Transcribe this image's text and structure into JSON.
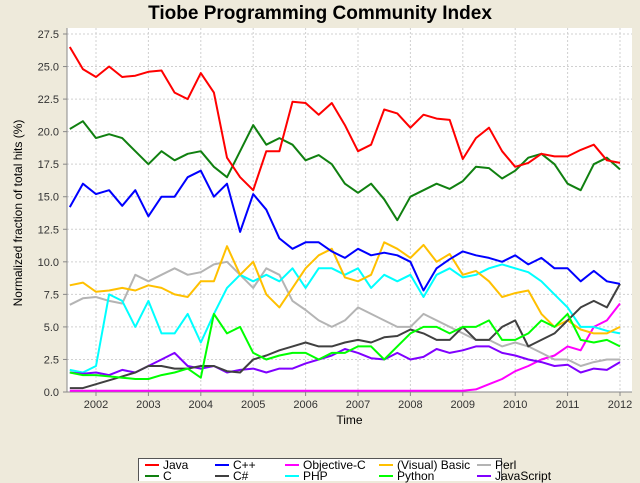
{
  "chart_data": {
    "type": "line",
    "title": "Tiobe Programming Community Index",
    "xlabel": "Time",
    "ylabel": "Normalized fraction of total hits (%)",
    "xlim": [
      2001.45,
      2012.1
    ],
    "ylim": [
      0,
      27.5
    ],
    "x_ticks": [
      "2002",
      "2003",
      "2004",
      "2005",
      "2006",
      "2007",
      "2008",
      "2009",
      "2010",
      "2011",
      "2012"
    ],
    "y_ticks": [
      "0.0",
      "2.5",
      "5.0",
      "7.5",
      "10.0",
      "12.5",
      "15.0",
      "17.5",
      "20.0",
      "22.5",
      "25.0",
      "27.5"
    ],
    "grid": true,
    "legend_position": "bottom",
    "x_start": 2001.5,
    "x_step": 0.25,
    "series": [
      {
        "name": "Java",
        "color": "#FF0000",
        "values": [
          26.5,
          24.8,
          24.2,
          25.0,
          24.2,
          24.3,
          24.6,
          24.7,
          23.0,
          22.5,
          24.5,
          23.0,
          18.0,
          16.5,
          15.5,
          18.5,
          18.5,
          22.3,
          22.2,
          21.3,
          22.2,
          20.5,
          18.5,
          19.0,
          21.7,
          21.4,
          20.3,
          21.3,
          21.0,
          20.9,
          17.9,
          19.5,
          20.3,
          18.5,
          17.3,
          17.6,
          18.3,
          18.1,
          18.1,
          18.6,
          19.0,
          17.8,
          17.6
        ]
      },
      {
        "name": "C++",
        "color": "#0000FF",
        "values": [
          14.2,
          16.0,
          15.2,
          15.5,
          14.3,
          15.5,
          13.5,
          15.0,
          15.0,
          16.5,
          17.0,
          15.0,
          16.0,
          12.3,
          15.2,
          14.0,
          11.8,
          11.0,
          11.5,
          11.5,
          10.8,
          10.3,
          11.0,
          10.5,
          10.7,
          10.5,
          10.0,
          7.8,
          9.5,
          10.2,
          10.8,
          10.5,
          10.3,
          10.0,
          10.5,
          9.8,
          10.3,
          9.5,
          9.5,
          8.5,
          9.3,
          8.5,
          8.3
        ]
      },
      {
        "name": "Objective-C",
        "color": "#FF00FF",
        "values": [
          0.1,
          0.1,
          0.1,
          0.1,
          0.1,
          0.1,
          0.1,
          0.1,
          0.1,
          0.1,
          0.1,
          0.1,
          0.1,
          0.1,
          0.1,
          0.1,
          0.1,
          0.1,
          0.1,
          0.1,
          0.1,
          0.1,
          0.1,
          0.1,
          0.1,
          0.1,
          0.1,
          0.1,
          0.1,
          0.1,
          0.1,
          0.2,
          0.6,
          1.0,
          1.6,
          2.0,
          2.5,
          2.8,
          3.5,
          3.2,
          5.0,
          5.5,
          6.8
        ]
      },
      {
        "name": "(Visual) Basic",
        "color": "#FFC000",
        "values": [
          8.2,
          8.4,
          7.7,
          7.8,
          8.0,
          7.8,
          8.2,
          8.0,
          7.5,
          7.3,
          8.5,
          8.5,
          11.2,
          9.0,
          10.0,
          7.5,
          6.5,
          8.0,
          9.5,
          10.5,
          11.0,
          8.8,
          8.5,
          9.0,
          11.5,
          11.0,
          10.3,
          11.3,
          10.0,
          10.6,
          9.0,
          9.3,
          8.5,
          7.3,
          7.6,
          7.8,
          6.0,
          5.0,
          5.5,
          4.8,
          4.5,
          4.5,
          5.0
        ]
      },
      {
        "name": "Perl",
        "color": "#B4B4B4",
        "values": [
          6.7,
          7.2,
          7.3,
          7.0,
          6.8,
          9.0,
          8.5,
          9.0,
          9.5,
          9.0,
          9.2,
          9.8,
          10.0,
          9.0,
          8.0,
          9.5,
          9.0,
          7.0,
          6.3,
          5.5,
          5.0,
          5.5,
          6.5,
          6.0,
          5.5,
          5.0,
          5.0,
          6.0,
          5.5,
          5.0,
          4.5,
          4.0,
          4.0,
          3.5,
          3.8,
          3.5,
          3.0,
          2.5,
          2.5,
          2.0,
          2.3,
          2.5,
          2.5
        ]
      },
      {
        "name": "C",
        "color": "#108010",
        "values": [
          20.2,
          20.8,
          19.5,
          19.8,
          19.5,
          18.5,
          17.5,
          18.5,
          17.8,
          18.3,
          18.5,
          17.3,
          16.5,
          18.5,
          20.5,
          19.0,
          19.5,
          19.0,
          17.8,
          18.2,
          17.5,
          16.0,
          15.3,
          16.0,
          14.8,
          13.2,
          15.0,
          15.5,
          16.0,
          15.6,
          16.2,
          17.3,
          17.2,
          16.4,
          17.0,
          18.0,
          18.3,
          17.5,
          16.0,
          15.5,
          17.5,
          18.0,
          17.1
        ]
      },
      {
        "name": "C#",
        "color": "#404040",
        "values": [
          0.3,
          0.3,
          0.6,
          0.9,
          1.2,
          1.5,
          2.0,
          2.0,
          1.8,
          1.8,
          2.0,
          2.0,
          1.6,
          1.5,
          2.5,
          2.8,
          3.2,
          3.5,
          3.8,
          3.5,
          3.5,
          3.8,
          4.0,
          3.8,
          4.2,
          4.3,
          4.8,
          4.5,
          4.0,
          4.0,
          5.0,
          4.0,
          4.0,
          5.0,
          5.5,
          3.5,
          4.0,
          4.5,
          5.5,
          6.5,
          7.0,
          6.5,
          8.3
        ]
      },
      {
        "name": "PHP",
        "color": "#00FFFF",
        "values": [
          1.7,
          1.5,
          2.0,
          7.5,
          7.0,
          5.0,
          7.0,
          4.5,
          4.5,
          6.0,
          3.8,
          6.0,
          8.0,
          9.0,
          8.5,
          9.0,
          8.5,
          9.5,
          8.0,
          9.5,
          9.5,
          9.0,
          9.5,
          8.0,
          9.0,
          8.5,
          9.0,
          7.3,
          9.0,
          9.5,
          8.8,
          9.0,
          9.5,
          9.8,
          9.5,
          9.2,
          8.5,
          7.5,
          6.5,
          5.0,
          5.0,
          4.7,
          4.5
        ]
      },
      {
        "name": "Python",
        "color": "#00FF00",
        "values": [
          1.5,
          1.3,
          1.3,
          1.2,
          1.1,
          1.0,
          1.0,
          1.3,
          1.5,
          1.8,
          1.1,
          6.0,
          4.5,
          5.0,
          3.0,
          2.5,
          2.8,
          3.0,
          3.0,
          2.5,
          3.0,
          3.0,
          3.5,
          3.5,
          2.5,
          3.5,
          4.5,
          5.0,
          5.0,
          4.5,
          5.0,
          5.0,
          5.5,
          4.0,
          4.0,
          4.5,
          5.5,
          5.0,
          6.0,
          4.0,
          3.8,
          4.0,
          3.5
        ]
      },
      {
        "name": "JavaScript",
        "color": "#8000FF",
        "values": [
          1.5,
          1.4,
          1.5,
          1.3,
          1.7,
          1.5,
          2.0,
          2.5,
          3.0,
          2.0,
          1.8,
          2.0,
          1.5,
          1.7,
          1.8,
          1.5,
          1.8,
          1.8,
          2.2,
          2.5,
          2.8,
          3.3,
          3.0,
          2.6,
          2.5,
          3.0,
          2.5,
          2.7,
          3.3,
          3.0,
          3.2,
          3.5,
          3.5,
          3.0,
          2.8,
          2.5,
          2.3,
          2.0,
          2.1,
          1.5,
          1.8,
          1.7,
          2.3
        ]
      }
    ]
  }
}
